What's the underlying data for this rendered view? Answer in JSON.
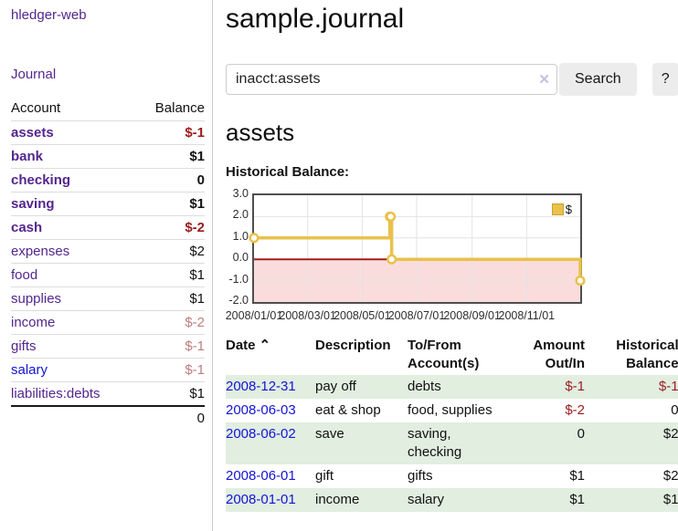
{
  "sidebar": {
    "app_title": "hledger-web",
    "journal_label": "Journal",
    "table": {
      "account_header": "Account",
      "balance_header": "Balance",
      "rows": [
        {
          "label": "assets",
          "level": 1,
          "bold": true,
          "link": "purple",
          "balance": "$-1",
          "balance_class": "neg"
        },
        {
          "label": "bank",
          "level": 2,
          "bold": true,
          "link": "purple",
          "balance": "$1",
          "balance_class": ""
        },
        {
          "label": "checking",
          "level": 3,
          "bold": true,
          "link": "purple",
          "balance": "0",
          "balance_class": ""
        },
        {
          "label": "saving",
          "level": 3,
          "bold": true,
          "link": "purple",
          "balance": "$1",
          "balance_class": ""
        },
        {
          "label": "cash",
          "level": 2,
          "bold": true,
          "link": "purple",
          "balance": "$-2",
          "balance_class": "neg"
        },
        {
          "label": "expenses",
          "level": 1,
          "bold": false,
          "link": "purple",
          "balance": "$2",
          "balance_class": ""
        },
        {
          "label": "food",
          "level": 2,
          "bold": false,
          "link": "purple",
          "balance": "$1",
          "balance_class": ""
        },
        {
          "label": "supplies",
          "level": 2,
          "bold": false,
          "link": "purple",
          "balance": "$1",
          "balance_class": ""
        },
        {
          "label": "income",
          "level": 1,
          "bold": false,
          "link": "purple",
          "balance": "$-2",
          "balance_class": "neg-light"
        },
        {
          "label": "gifts",
          "level": 2,
          "bold": false,
          "link": "purple",
          "balance": "$-1",
          "balance_class": "neg-light"
        },
        {
          "label": "salary",
          "level": 2,
          "bold": false,
          "link": "blue",
          "balance": "$-1",
          "balance_class": "neg-light"
        },
        {
          "label": "liabilities:debts",
          "level": 1,
          "bold": false,
          "link": "purple",
          "balance": "$1",
          "balance_class": ""
        }
      ],
      "total": "0"
    }
  },
  "main": {
    "title": "sample.journal",
    "search": {
      "value": "inacct:assets",
      "clear_icon": "✕",
      "button_label": "Search",
      "help_label": "?"
    },
    "account_heading": "assets"
  },
  "chart_data": {
    "type": "line",
    "style": "step",
    "title": "Historical Balance:",
    "legend": [
      {
        "name": "$",
        "color": "#e9c14b"
      }
    ],
    "x_range": [
      "2008-01-01",
      "2008-12-31"
    ],
    "ylim": [
      -2,
      3
    ],
    "y_ticks": [
      "3.0",
      "2.0",
      "1.0",
      "0.0",
      "-1.0",
      "-2.0"
    ],
    "x_ticks": [
      {
        "label": "2008/01/01",
        "date": "2008-01-01"
      },
      {
        "label": "2008/03/01",
        "date": "2008-03-01"
      },
      {
        "label": "2008/05/01",
        "date": "2008-05-01"
      },
      {
        "label": "2008/07/01",
        "date": "2008-07-01"
      },
      {
        "label": "2008/09/01",
        "date": "2008-09-01"
      },
      {
        "label": "2008/11/01",
        "date": "2008-11-01"
      }
    ],
    "series": [
      {
        "name": "$",
        "color": "#e9c14b",
        "points": [
          {
            "date": "2008-01-01",
            "value": 1
          },
          {
            "date": "2008-06-01",
            "value": 2
          },
          {
            "date": "2008-06-02",
            "value": 2
          },
          {
            "date": "2008-06-03",
            "value": 0
          },
          {
            "date": "2008-12-31",
            "value": -1
          }
        ]
      }
    ],
    "grid": true,
    "negative_region_color": "#fbdcdc",
    "zero_line_color": "#a31f1f",
    "grid_color": "#e3e3e3"
  },
  "register": {
    "headers": {
      "date": "Date",
      "sort_icon": "⌃",
      "description": "Description",
      "account_line1": "To/From",
      "account_line2": "Account(s)",
      "amount_line1": "Amount",
      "amount_line2": "Out/In",
      "balance_line1": "Historical",
      "balance_line2": "Balance"
    },
    "rows": [
      {
        "date": "2008-12-31",
        "description": "pay off",
        "accounts": "debts",
        "amount": "$-1",
        "amount_neg": true,
        "balance": "$-1",
        "balance_neg": true,
        "shaded": true
      },
      {
        "date": "2008-06-03",
        "description": "eat & shop",
        "accounts": "food, supplies",
        "amount": "$-2",
        "amount_neg": true,
        "balance": "0",
        "balance_neg": false,
        "shaded": false
      },
      {
        "date": "2008-06-02",
        "description": "save",
        "accounts": "saving, checking",
        "amount": "0",
        "amount_neg": false,
        "balance": "$2",
        "balance_neg": false,
        "shaded": true
      },
      {
        "date": "2008-06-01",
        "description": "gift",
        "accounts": "gifts",
        "amount": "$1",
        "amount_neg": false,
        "balance": "$2",
        "balance_neg": false,
        "shaded": false
      },
      {
        "date": "2008-01-01",
        "description": "income",
        "accounts": "salary",
        "amount": "$1",
        "amount_neg": false,
        "balance": "$1",
        "balance_neg": false,
        "shaded": true
      }
    ]
  }
}
